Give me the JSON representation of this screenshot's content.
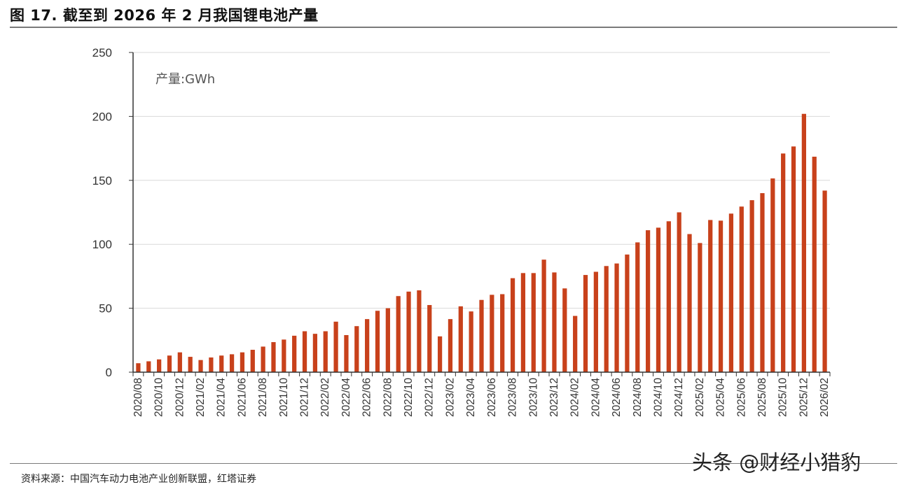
{
  "title": "图 17. 截至到 2026 年 2 月我国锂电池产量",
  "source": "资料来源：中国汽车动力电池产业创新联盟，红塔证券",
  "watermark": "头条 @财经小猎豹",
  "colors": {
    "bar": "#c8411b",
    "grid": "#d9d9d9",
    "axis": "#333333",
    "text": "#333333"
  },
  "chart_data": {
    "type": "bar",
    "title": "",
    "unit_label": "产量:GWh",
    "xlabel": "",
    "ylabel": "",
    "ylim": [
      0,
      250
    ],
    "yticks": [
      0,
      50,
      100,
      150,
      200,
      250
    ],
    "grid": true,
    "categories": [
      "2020/08",
      "2020/09",
      "2020/10",
      "2020/11",
      "2020/12",
      "2021/01",
      "2021/02",
      "2021/03",
      "2021/04",
      "2021/05",
      "2021/06",
      "2021/07",
      "2021/08",
      "2021/09",
      "2021/10",
      "2021/11",
      "2021/12",
      "2022/01",
      "2022/02",
      "2022/03",
      "2022/04",
      "2022/05",
      "2022/06",
      "2022/07",
      "2022/08",
      "2022/09",
      "2022/10",
      "2022/11",
      "2022/12",
      "2023/01",
      "2023/02",
      "2023/03",
      "2023/04",
      "2023/05",
      "2023/06",
      "2023/07",
      "2023/08",
      "2023/09",
      "2023/10",
      "2023/11",
      "2023/12",
      "2024/01",
      "2024/02",
      "2024/03",
      "2024/04",
      "2024/05",
      "2024/06",
      "2024/07",
      "2024/08",
      "2024/09",
      "2024/10",
      "2024/11",
      "2024/12",
      "2025/01",
      "2025/02",
      "2025/03",
      "2025/04",
      "2025/05",
      "2025/06",
      "2025/07",
      "2025/08",
      "2025/09",
      "2025/10",
      "2025/11",
      "2025/12",
      "2026/01",
      "2026/02"
    ],
    "tick_labels": [
      "2020/08",
      "2020/10",
      "2020/12",
      "2021/02",
      "2021/04",
      "2021/06",
      "2021/08",
      "2021/10",
      "2021/12",
      "2022/02",
      "2022/04",
      "2022/06",
      "2022/08",
      "2022/10",
      "2022/12",
      "2023/02",
      "2023/04",
      "2023/06",
      "2023/08",
      "2023/10",
      "2023/12",
      "2024/02",
      "2024/04",
      "2024/06",
      "2024/08",
      "2024/10",
      "2024/12",
      "2025/02",
      "2025/04",
      "2025/06",
      "2025/08",
      "2025/10",
      "2025/12",
      "2026/02"
    ],
    "values": [
      7,
      8.5,
      10,
      13,
      15.5,
      12,
      9.5,
      11.5,
      13,
      14,
      15.5,
      17.5,
      20,
      23.5,
      25.5,
      28.5,
      32,
      30,
      32,
      39.5,
      29,
      36,
      41.5,
      48,
      50,
      59.5,
      63,
      64,
      52.5,
      28,
      41.5,
      51.5,
      47.5,
      56.5,
      60.5,
      61,
      73.5,
      77.5,
      77.5,
      88,
      78,
      65.5,
      44,
      76,
      78.5,
      83,
      85,
      92,
      101.5,
      111,
      113,
      118,
      125,
      108,
      101,
      119,
      118.5,
      124,
      129.5,
      134.5,
      140,
      151.5,
      171,
      176.5,
      202,
      168.5,
      142
    ]
  }
}
